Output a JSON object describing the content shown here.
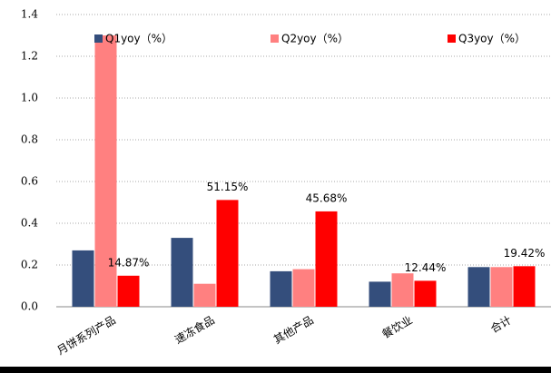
{
  "chart_data": {
    "type": "bar",
    "categories": [
      "月饼系列产品",
      "速冻食品",
      "其他产品",
      "餐饮业",
      "合计"
    ],
    "series": [
      {
        "name": "Q1yoy（%）",
        "color": "#344e7c",
        "values": [
          0.27,
          0.33,
          0.17,
          0.12,
          0.19
        ]
      },
      {
        "name": "Q2yoy（%）",
        "color": "#ff8080",
        "values": [
          1.3,
          0.11,
          0.18,
          0.16,
          0.19
        ]
      },
      {
        "name": "Q3yoy（%）",
        "color": "#ff0000",
        "values": [
          0.1487,
          0.5115,
          0.4568,
          0.1244,
          0.1942
        ],
        "value_labels": [
          "14.87%",
          "51.15%",
          "45.68%",
          "12.44%",
          "19.42%"
        ]
      }
    ],
    "ylim": [
      0,
      1.4
    ],
    "yticks": [
      {
        "value": 0,
        "label": "0.0"
      },
      0.2,
      0.4,
      0.6,
      0.8,
      {
        "value": 1,
        "label": "1.0"
      },
      1.2,
      1.4
    ],
    "grid": true,
    "legend": "top"
  }
}
